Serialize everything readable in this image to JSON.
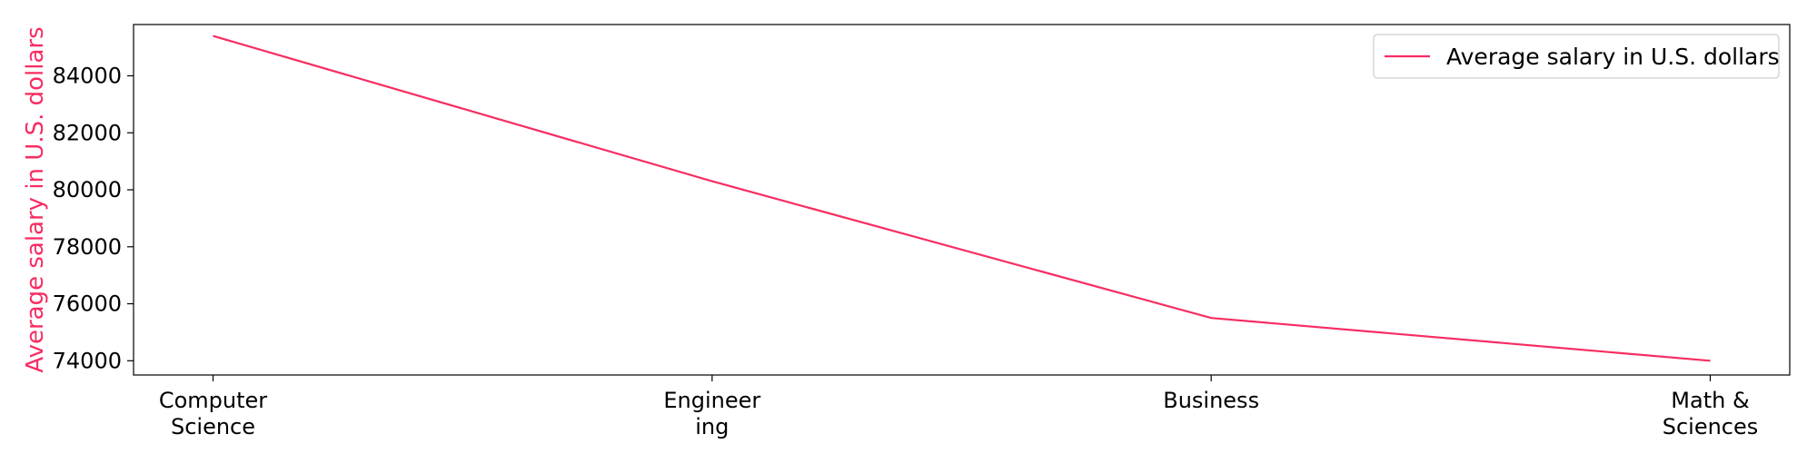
{
  "chart_data": {
    "type": "line",
    "categories": [
      "Computer\nScience",
      "Engineer\ning",
      "Business",
      "Math &\nSciences"
    ],
    "series": [
      {
        "name": "Average salary in U.S. dollars",
        "values": [
          85400,
          80300,
          75500,
          74000
        ]
      }
    ],
    "ylabel": "Average salary in U.S. dollars",
    "ylim": [
      73500,
      85800
    ],
    "yticks": [
      74000,
      76000,
      78000,
      80000,
      82000,
      84000
    ],
    "grid": false,
    "legend_position": "top-right",
    "line_color": "#f72d62",
    "ylabel_color": "#f72d62"
  }
}
